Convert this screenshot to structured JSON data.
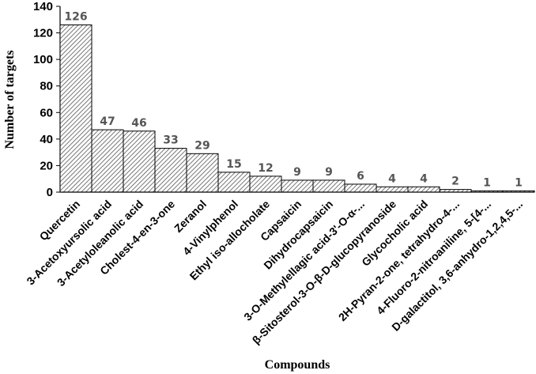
{
  "chart_data": {
    "type": "bar",
    "title": "",
    "xlabel": "Compounds",
    "ylabel": "Number of targets",
    "ylim": [
      0,
      140
    ],
    "yticks": [
      0,
      20,
      40,
      60,
      80,
      100,
      120,
      140
    ],
    "grid": false,
    "legend": "none",
    "bar_fill": "hatched",
    "colors": {
      "bar_stroke": "#000000",
      "hatch": "#555555",
      "data_label": "#555555"
    },
    "categories": [
      "Quercetin",
      "3-Acetoxyursolic acid",
      "3-Acetyloleanolic acid",
      "Cholest-4-en-3-one",
      "Zeranol",
      "4-Vinylphenol",
      "Ethyl iso-allocholate",
      "Capsaicin",
      "Dihydrocapsaicin",
      "3-O-Methylellagic acid-3'-O-α-...",
      "β-Sitosterol-3-O-β-D-glucopyranoside",
      "Glycocholic acid",
      "2H-Pyran-2-one, tetrahydro-4-...",
      "4-Fluoro-2-nitroaniline, 5-[4-...",
      "D-galactitol, 3,6-anhydro-1,2,4,5-..."
    ],
    "values": [
      126,
      47,
      46,
      33,
      29,
      15,
      12,
      9,
      9,
      6,
      4,
      4,
      2,
      1,
      1
    ]
  }
}
